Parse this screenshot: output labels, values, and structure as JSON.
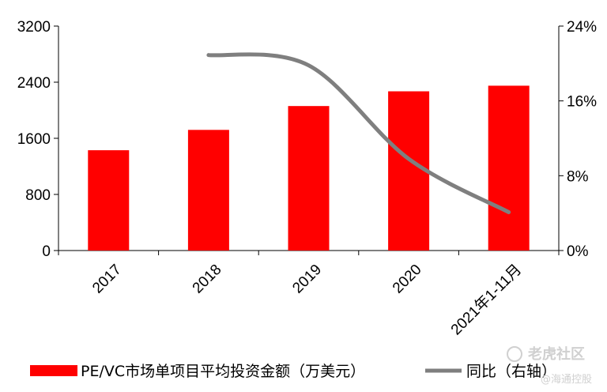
{
  "chart_data": {
    "type": "bar",
    "categories": [
      "2017",
      "2018",
      "2019",
      "2020",
      "2021年1-11月"
    ],
    "series": [
      {
        "name": "PE/VC市场单项目平均投资金额（万美元）",
        "type": "bar",
        "axis": "left",
        "color": "#ff0000",
        "values": [
          1430,
          1720,
          2060,
          2270,
          2350
        ]
      },
      {
        "name": "同比（右轴）",
        "type": "line",
        "axis": "right",
        "color": "#7f7f7f",
        "values": [
          null,
          20.9,
          19.8,
          9.8,
          4.1
        ]
      }
    ],
    "ylim_left": [
      0,
      3200
    ],
    "yticks_left": [
      "0",
      "800",
      "1600",
      "2400",
      "3200"
    ],
    "ylim_right": [
      0,
      24
    ],
    "yticks_right": [
      "0%",
      "8%",
      "16%",
      "24%"
    ],
    "grid": false,
    "legend_position": "bottom"
  },
  "watermark": {
    "main": "老虎社区",
    "sub": "@海通控股"
  }
}
